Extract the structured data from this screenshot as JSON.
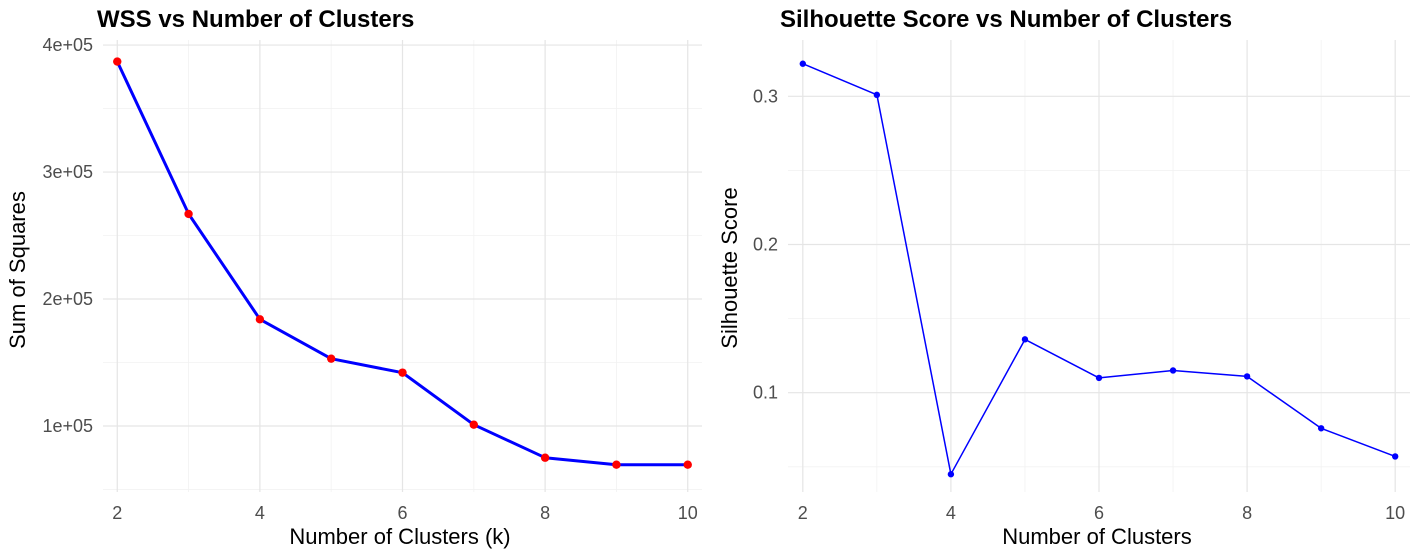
{
  "chart_data": [
    {
      "type": "line",
      "title": "WSS vs Number of Clusters",
      "xlabel": "Number of Clusters (k)",
      "ylabel": "Sum of Squares",
      "x": [
        2,
        3,
        4,
        5,
        6,
        7,
        8,
        9,
        10
      ],
      "x_ticks": [
        2,
        4,
        6,
        8,
        10
      ],
      "x_tick_labels": [
        "2",
        "4",
        "6",
        "8",
        "10"
      ],
      "xlim": [
        1.8,
        10.2
      ],
      "y_ticks": [
        100000,
        200000,
        300000,
        400000
      ],
      "y_tick_labels": [
        "1e+05",
        "2e+05",
        "3e+05",
        "4e+05"
      ],
      "ylim": [
        48000,
        404000
      ],
      "grid": true,
      "series": [
        {
          "values": [
            387000,
            267000,
            184000,
            153000,
            142000,
            101000,
            75000,
            69500,
            69500
          ],
          "line_color": "#0000ff",
          "point_color": "#ff0000"
        }
      ]
    },
    {
      "type": "line",
      "title": "Silhouette Score vs Number of Clusters",
      "xlabel": "Number of Clusters",
      "ylabel": "Silhouette Score",
      "x": [
        2,
        3,
        4,
        5,
        6,
        7,
        8,
        9,
        10
      ],
      "x_ticks": [
        2,
        4,
        6,
        8,
        10
      ],
      "x_tick_labels": [
        "2",
        "4",
        "6",
        "8",
        "10"
      ],
      "xlim": [
        1.8,
        10.2
      ],
      "y_ticks": [
        0.1,
        0.2,
        0.3
      ],
      "y_tick_labels": [
        "0.1",
        "0.2",
        "0.3"
      ],
      "ylim": [
        0.033,
        0.338
      ],
      "grid": true,
      "series": [
        {
          "values": [
            0.322,
            0.301,
            0.045,
            0.136,
            0.11,
            0.115,
            0.111,
            0.076,
            0.057
          ],
          "line_color": "#0000ff",
          "point_color": "#0000ff"
        }
      ]
    }
  ]
}
